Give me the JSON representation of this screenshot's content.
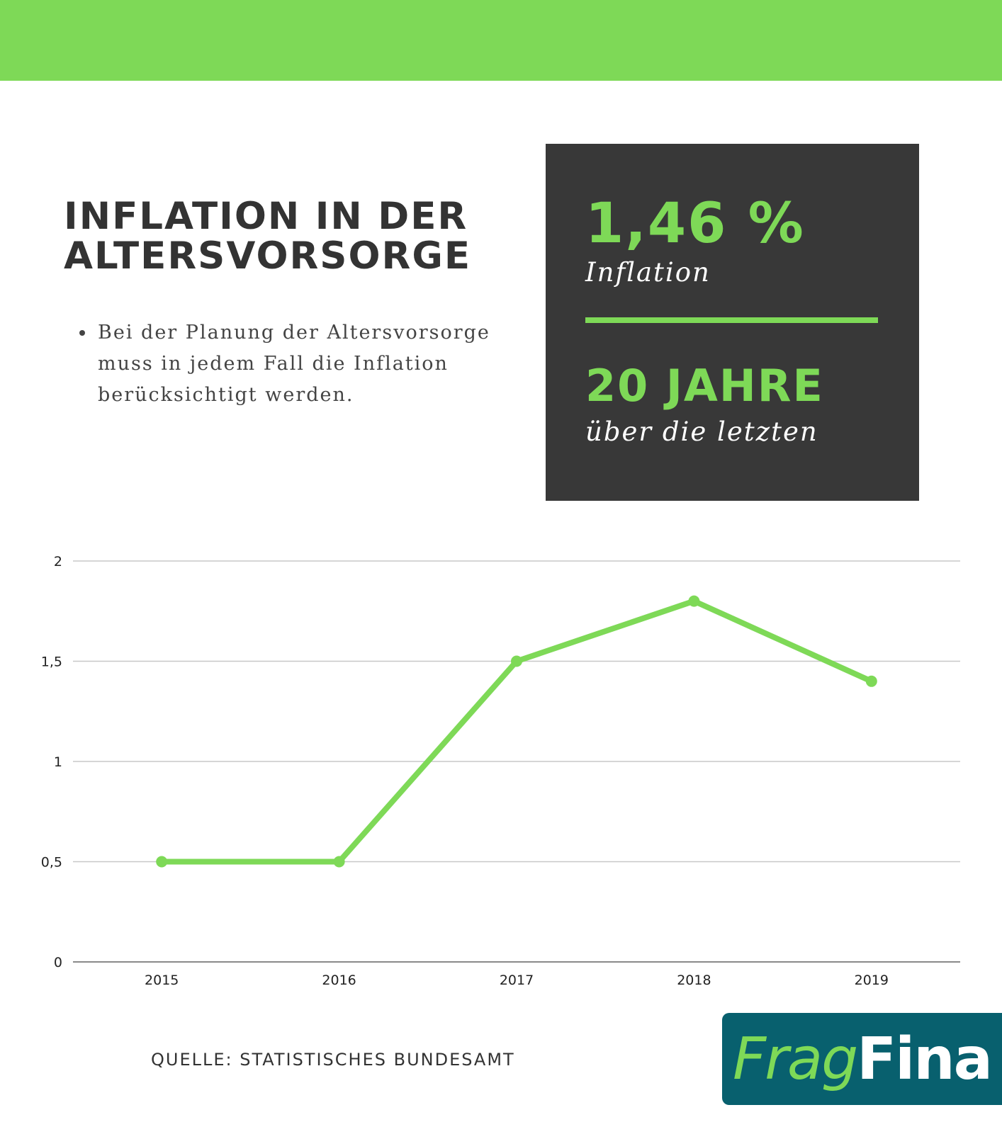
{
  "colors": {
    "accent": "#7ed957",
    "dark_panel": "#383838",
    "text": "#333333",
    "grid": "#c8c8c8",
    "axis": "#8a8a8a",
    "logo_bg": "#08606e",
    "logo_white": "#ffffff"
  },
  "header": {
    "title_line1": "INFLATION IN DER",
    "title_line2": "ALTERSVORSORGE"
  },
  "bullets": [
    "Bei der Planung der Altersvorsorge muss in jedem Fall die Inflation berücksichtigt werden."
  ],
  "stats": {
    "value1": "1,46 %",
    "label1": "Inflation",
    "value2": "20 JAHRE",
    "label2": "über die letzten"
  },
  "chart_data": {
    "type": "line",
    "categories": [
      "2015",
      "2016",
      "2017",
      "2018",
      "2019"
    ],
    "series": [
      {
        "values": [
          0.5,
          0.5,
          1.5,
          1.8,
          1.4
        ]
      }
    ],
    "ylim": [
      0,
      2
    ],
    "yticks": [
      0,
      0.5,
      1,
      1.5,
      2
    ],
    "ytick_labels": [
      "0",
      "0,5",
      "1",
      "1,5",
      "2"
    ],
    "grid": true,
    "xlabel": "",
    "ylabel": ""
  },
  "footer": {
    "source": "QUELLE: STATISTISCHES BUNDESAMT",
    "logo_part1": "Frag",
    "logo_part2": "Fina"
  }
}
